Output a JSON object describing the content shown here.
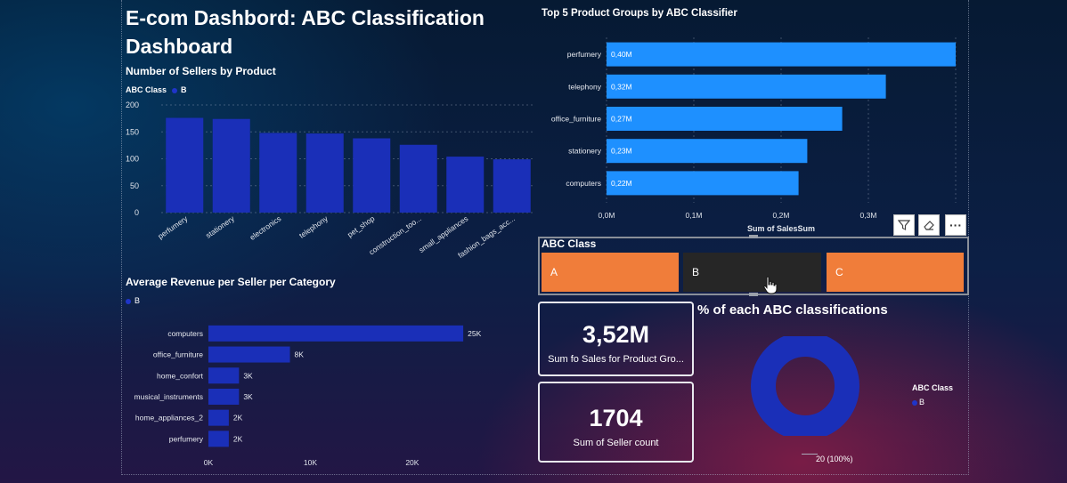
{
  "dashboard": {
    "title": "E-com Dashbord: ABC Classification Dashboard"
  },
  "sellers_chart": {
    "title": "Number of Sellers by Product",
    "legend_title": "ABC Class",
    "legend_item": "B",
    "color": "#1a2fb8"
  },
  "revenue_chart": {
    "title": "Average Revenue per Seller per Category",
    "legend_item": "B",
    "color": "#1a2fb8"
  },
  "top5_chart": {
    "title": "Top 5 Product Groups by ABC Classifier",
    "color": "#1e90ff"
  },
  "slicer": {
    "title": "ABC Class",
    "options": [
      "A",
      "B",
      "C"
    ],
    "colors": {
      "A": "#f07d3a",
      "B": "#262626",
      "C": "#f07d3a"
    }
  },
  "visual_toolbar": {
    "filter_icon": "filter-icon",
    "eraser_icon": "eraser-icon",
    "more_label": "···"
  },
  "kpi_sales": {
    "value": "3,52M",
    "label": "Sum fo Sales for Product Gro..."
  },
  "kpi_sellers": {
    "value": "1704",
    "label": "Sum of Seller count"
  },
  "donut": {
    "title": "% of each ABC classifications",
    "legend_title": "ABC Class",
    "legend_item": "B",
    "data_label": "20 (100%)",
    "color": "#1a2fb8"
  },
  "chart_data": [
    {
      "type": "bar",
      "title": "Number of Sellers by Product",
      "categories": [
        "perfumery",
        "stationery",
        "electronics",
        "telephony",
        "pet_shop",
        "construction_too...",
        "small_appliances",
        "fashion_bags_acc..."
      ],
      "series": [
        {
          "name": "B",
          "values": [
            176,
            174,
            148,
            147,
            138,
            126,
            104,
            99
          ]
        }
      ],
      "ylim": [
        0,
        200
      ],
      "yticks": [
        "0",
        "50",
        "100",
        "150",
        "200"
      ],
      "legend_title": "ABC Class",
      "legend": "top-left",
      "grid": true
    },
    {
      "type": "bar",
      "orientation": "horizontal",
      "title": "Average Revenue per Seller per Category",
      "categories": [
        "computers",
        "office_furniture",
        "home_confort",
        "musical_instruments",
        "home_appliances_2",
        "perfumery"
      ],
      "series": [
        {
          "name": "B",
          "values": [
            25000,
            8000,
            3000,
            3000,
            2000,
            2000
          ]
        }
      ],
      "data_labels": [
        "25K",
        "8K",
        "3K",
        "3K",
        "2K",
        "2K"
      ],
      "xlim": [
        0,
        27000
      ],
      "xticks": [
        {
          "value": 0,
          "label": "0K"
        },
        {
          "value": 10000,
          "label": "10K"
        },
        {
          "value": 20000,
          "label": "20K"
        }
      ],
      "legend": "top-left"
    },
    {
      "type": "bar",
      "orientation": "horizontal",
      "title": "Top 5 Product Groups by ABC Classifier",
      "categories": [
        "perfumery",
        "telephony",
        "office_furniture",
        "stationery",
        "computers"
      ],
      "values": [
        0.4,
        0.32,
        0.27,
        0.23,
        0.22
      ],
      "data_labels": [
        "0,40M",
        "0,32M",
        "0,27M",
        "0,23M",
        "0,22M"
      ],
      "xlabel": "Sum of SalesSum",
      "xlim": [
        0,
        0.4
      ],
      "xticks": [
        {
          "value": 0,
          "label": "0,0M"
        },
        {
          "value": 0.1,
          "label": "0,1M"
        },
        {
          "value": 0.2,
          "label": "0,2M"
        },
        {
          "value": 0.3,
          "label": "0,3M"
        }
      ],
      "grid": true
    },
    {
      "type": "pie",
      "variant": "donut",
      "title": "% of each ABC classifications",
      "categories": [
        "B"
      ],
      "values": [
        20
      ],
      "data_labels": [
        "20 (100%)"
      ],
      "legend_title": "ABC Class",
      "legend": "right"
    }
  ]
}
